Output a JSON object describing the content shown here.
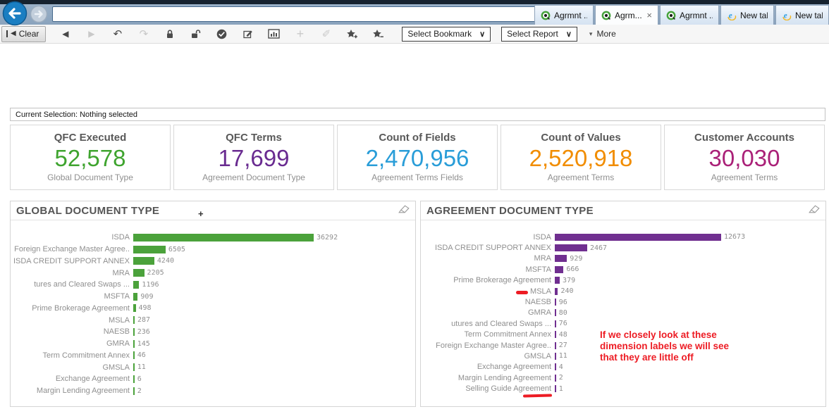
{
  "browser": {
    "url_value": "",
    "tabs": [
      {
        "label": "Agrmnt ...",
        "icon": "qlik",
        "active": false,
        "closable": false
      },
      {
        "label": "Agrm...",
        "icon": "qlik",
        "active": true,
        "closable": true,
        "close_glyph": "×"
      },
      {
        "label": "Agrmnt ...",
        "icon": "qlik",
        "active": false,
        "closable": false
      },
      {
        "label": "New tab",
        "icon": "ie",
        "active": false,
        "closable": false
      },
      {
        "label": "New tab",
        "icon": "ie",
        "active": false,
        "closable": false
      }
    ]
  },
  "toolbar": {
    "clear_label": "Clear",
    "icons": [
      {
        "name": "back",
        "enabled": true
      },
      {
        "name": "forward",
        "enabled": false
      },
      {
        "name": "undo",
        "enabled": true
      },
      {
        "name": "redo",
        "enabled": false
      },
      {
        "name": "lock",
        "enabled": true
      },
      {
        "name": "unlock",
        "enabled": true
      },
      {
        "name": "apply-check",
        "enabled": true
      },
      {
        "name": "edit-notes",
        "enabled": true
      },
      {
        "name": "chart-properties",
        "enabled": true
      },
      {
        "name": "add",
        "enabled": false
      },
      {
        "name": "marker",
        "enabled": false
      },
      {
        "name": "bookmark-add",
        "enabled": true
      },
      {
        "name": "bookmark-remove",
        "enabled": true
      }
    ],
    "select_bookmark_label": "Select Bookmark",
    "select_report_label": "Select Report",
    "more_label": "More"
  },
  "current_selection": "Current Selection: Nothing selected",
  "kpi_cards": [
    {
      "title": "QFC Executed",
      "value": "52,578",
      "sublabel": "Global Document Type",
      "color": "#3fa42f"
    },
    {
      "title": "QFC Terms",
      "value": "17,699",
      "sublabel": "Agreement Document Type",
      "color": "#692b90"
    },
    {
      "title": "Count of Fields",
      "value": "2,470,956",
      "sublabel": "Agreement Terms Fields",
      "color": "#299dd8"
    },
    {
      "title": "Count of Values",
      "value": "2,520,918",
      "sublabel": "Agreement Terms",
      "color": "#f18d00"
    },
    {
      "title": "Customer Accounts",
      "value": "30,030",
      "sublabel": "Agreement Terms",
      "color": "#aa2178"
    }
  ],
  "chart_data": [
    {
      "type": "bar",
      "orientation": "horizontal",
      "title": "GLOBAL DOCUMENT TYPE",
      "bar_color": "#4ba23b",
      "axis": "none",
      "value_labels_shown": true,
      "categories": [
        "ISDA",
        "Foreign Exchange Master Agree..",
        "ISDA CREDIT SUPPORT ANNEX",
        "MRA",
        "tures and Cleared Swaps ...",
        "MSFTA",
        "Prime Brokerage Agreement",
        "MSLA",
        "NAESB",
        "GMRA",
        "Term Commitment Annex",
        "GMSLA",
        "Exchange Agreement",
        "Margin Lending Agreement"
      ],
      "values": [
        36292,
        6505,
        4240,
        2205,
        1196,
        909,
        498,
        287,
        236,
        145,
        46,
        11,
        6,
        2
      ]
    },
    {
      "type": "bar",
      "orientation": "horizontal",
      "title": "AGREEMENT DOCUMENT TYPE",
      "bar_color": "#702f90",
      "axis": "none",
      "value_labels_shown": true,
      "categories": [
        "ISDA",
        "ISDA CREDIT SUPPORT ANNEX",
        "MRA",
        "MSFTA",
        "Prime Brokerage Agreement",
        "MSLA",
        "NAESB",
        "GMRA",
        "utures and Cleared Swaps ...",
        "Term Commitment Annex",
        "Foreign Exchange Master Agree..",
        "GMSLA",
        "Exchange Agreement",
        "Margin Lending Agreement",
        "Selling Guide Agreement"
      ],
      "values": [
        12673,
        2467,
        929,
        666,
        379,
        240,
        96,
        80,
        76,
        48,
        27,
        11,
        4,
        2,
        1
      ]
    }
  ],
  "annotation": {
    "lines": [
      "If we closely look at these",
      "dimension labels we will see",
      "that they are little off"
    ],
    "color": "#ed1c24"
  },
  "misc": {
    "cursor_glyph": "+"
  }
}
